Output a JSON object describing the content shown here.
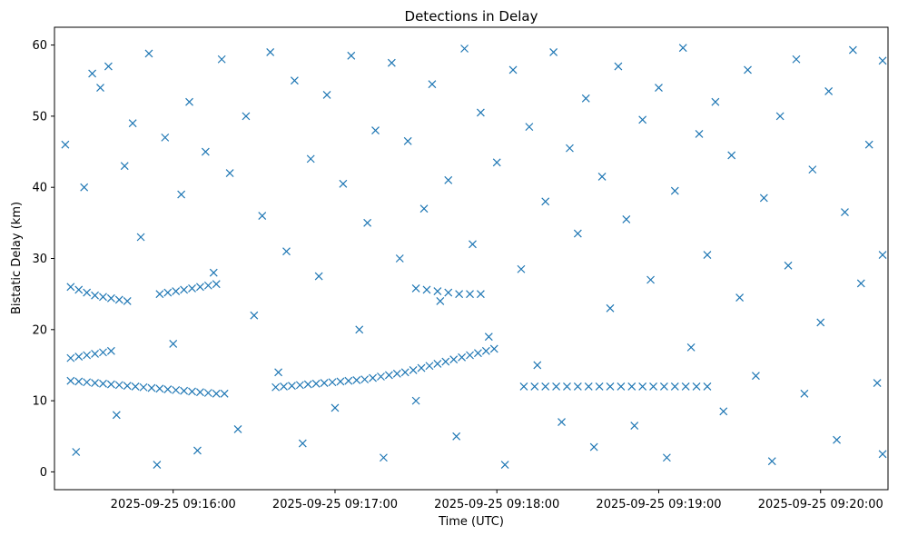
{
  "chart_data": {
    "type": "scatter",
    "title": "Detections in Delay",
    "xlabel": "Time (UTC)",
    "ylabel": "Bistatic Delay (km)",
    "marker": "x",
    "color": "#1f77b4",
    "grid": false,
    "x_axis": {
      "type": "time",
      "range": [
        "2025-09-25 09:15:16",
        "2025-09-25 09:20:25"
      ],
      "ticks": [
        "2025-09-25 09:16:00",
        "2025-09-25 09:17:00",
        "2025-09-25 09:18:00",
        "2025-09-25 09:19:00",
        "2025-09-25 09:20:00"
      ]
    },
    "y_axis": {
      "range": [
        -2.5,
        62.5
      ],
      "ticks": [
        0,
        10,
        20,
        30,
        40,
        50,
        60
      ]
    },
    "series": [
      {
        "points": [
          [
            "2025-09-25 09:15:22",
            12.8
          ],
          [
            "2025-09-25 09:15:25",
            12.7
          ],
          [
            "2025-09-25 09:15:28",
            12.6
          ],
          [
            "2025-09-25 09:15:31",
            12.5
          ],
          [
            "2025-09-25 09:15:34",
            12.4
          ],
          [
            "2025-09-25 09:15:37",
            12.3
          ],
          [
            "2025-09-25 09:15:40",
            12.2
          ],
          [
            "2025-09-25 09:15:43",
            12.1
          ],
          [
            "2025-09-25 09:15:46",
            12.0
          ],
          [
            "2025-09-25 09:15:49",
            11.9
          ],
          [
            "2025-09-25 09:15:52",
            11.8
          ],
          [
            "2025-09-25 09:15:55",
            11.7
          ],
          [
            "2025-09-25 09:15:58",
            11.6
          ],
          [
            "2025-09-25 09:16:01",
            11.5
          ],
          [
            "2025-09-25 09:16:04",
            11.4
          ],
          [
            "2025-09-25 09:16:07",
            11.3
          ],
          [
            "2025-09-25 09:16:10",
            11.2
          ],
          [
            "2025-09-25 09:16:13",
            11.1
          ],
          [
            "2025-09-25 09:16:16",
            11.0
          ],
          [
            "2025-09-25 09:16:19",
            11.0
          ],
          [
            "2025-09-25 09:16:38",
            11.9
          ],
          [
            "2025-09-25 09:16:41",
            12.0
          ],
          [
            "2025-09-25 09:16:44",
            12.1
          ],
          [
            "2025-09-25 09:16:47",
            12.2
          ],
          [
            "2025-09-25 09:16:50",
            12.3
          ],
          [
            "2025-09-25 09:16:53",
            12.4
          ],
          [
            "2025-09-25 09:16:56",
            12.5
          ],
          [
            "2025-09-25 09:16:59",
            12.6
          ],
          [
            "2025-09-25 09:17:02",
            12.7
          ],
          [
            "2025-09-25 09:17:05",
            12.8
          ],
          [
            "2025-09-25 09:17:08",
            12.9
          ],
          [
            "2025-09-25 09:17:11",
            13.0
          ],
          [
            "2025-09-25 09:17:14",
            13.2
          ],
          [
            "2025-09-25 09:17:17",
            13.4
          ],
          [
            "2025-09-25 09:17:20",
            13.6
          ],
          [
            "2025-09-25 09:17:23",
            13.8
          ],
          [
            "2025-09-25 09:17:26",
            14.0
          ],
          [
            "2025-09-25 09:17:29",
            14.3
          ],
          [
            "2025-09-25 09:17:32",
            14.6
          ],
          [
            "2025-09-25 09:17:35",
            14.9
          ],
          [
            "2025-09-25 09:17:38",
            15.2
          ],
          [
            "2025-09-25 09:17:41",
            15.5
          ],
          [
            "2025-09-25 09:17:44",
            15.8
          ],
          [
            "2025-09-25 09:17:47",
            16.1
          ],
          [
            "2025-09-25 09:17:50",
            16.4
          ],
          [
            "2025-09-25 09:17:53",
            16.7
          ],
          [
            "2025-09-25 09:17:56",
            17.0
          ],
          [
            "2025-09-25 09:17:59",
            17.3
          ],
          [
            "2025-09-25 09:15:22",
            16.0
          ],
          [
            "2025-09-25 09:15:25",
            16.2
          ],
          [
            "2025-09-25 09:15:28",
            16.4
          ],
          [
            "2025-09-25 09:15:31",
            16.6
          ],
          [
            "2025-09-25 09:15:34",
            16.8
          ],
          [
            "2025-09-25 09:15:37",
            17.0
          ],
          [
            "2025-09-25 09:15:22",
            26.0
          ],
          [
            "2025-09-25 09:15:25",
            25.6
          ],
          [
            "2025-09-25 09:15:28",
            25.2
          ],
          [
            "2025-09-25 09:15:31",
            24.8
          ],
          [
            "2025-09-25 09:15:34",
            24.6
          ],
          [
            "2025-09-25 09:15:37",
            24.4
          ],
          [
            "2025-09-25 09:15:40",
            24.2
          ],
          [
            "2025-09-25 09:15:43",
            24.0
          ],
          [
            "2025-09-25 09:15:55",
            25.0
          ],
          [
            "2025-09-25 09:15:58",
            25.2
          ],
          [
            "2025-09-25 09:16:01",
            25.4
          ],
          [
            "2025-09-25 09:16:04",
            25.6
          ],
          [
            "2025-09-25 09:16:07",
            25.8
          ],
          [
            "2025-09-25 09:16:10",
            26.0
          ],
          [
            "2025-09-25 09:16:13",
            26.2
          ],
          [
            "2025-09-25 09:16:16",
            26.4
          ],
          [
            "2025-09-25 09:18:10",
            12.0
          ],
          [
            "2025-09-25 09:18:14",
            12.0
          ],
          [
            "2025-09-25 09:18:18",
            12.0
          ],
          [
            "2025-09-25 09:18:22",
            12.0
          ],
          [
            "2025-09-25 09:18:26",
            12.0
          ],
          [
            "2025-09-25 09:18:30",
            12.0
          ],
          [
            "2025-09-25 09:18:34",
            12.0
          ],
          [
            "2025-09-25 09:18:38",
            12.0
          ],
          [
            "2025-09-25 09:18:42",
            12.0
          ],
          [
            "2025-09-25 09:18:46",
            12.0
          ],
          [
            "2025-09-25 09:18:50",
            12.0
          ],
          [
            "2025-09-25 09:18:54",
            12.0
          ],
          [
            "2025-09-25 09:18:58",
            12.0
          ],
          [
            "2025-09-25 09:19:02",
            12.0
          ],
          [
            "2025-09-25 09:19:06",
            12.0
          ],
          [
            "2025-09-25 09:19:10",
            12.0
          ],
          [
            "2025-09-25 09:19:14",
            12.0
          ],
          [
            "2025-09-25 09:19:18",
            12.0
          ],
          [
            "2025-09-25 09:17:30",
            25.8
          ],
          [
            "2025-09-25 09:17:34",
            25.6
          ],
          [
            "2025-09-25 09:17:38",
            25.4
          ],
          [
            "2025-09-25 09:17:42",
            25.2
          ],
          [
            "2025-09-25 09:17:46",
            25.0
          ],
          [
            "2025-09-25 09:17:50",
            25.0
          ],
          [
            "2025-09-25 09:17:54",
            25.0
          ],
          [
            "2025-09-25 09:15:20",
            46.0
          ],
          [
            "2025-09-25 09:15:24",
            2.8
          ],
          [
            "2025-09-25 09:15:27",
            40.0
          ],
          [
            "2025-09-25 09:15:30",
            56.0
          ],
          [
            "2025-09-25 09:15:33",
            54.0
          ],
          [
            "2025-09-25 09:15:36",
            57.0
          ],
          [
            "2025-09-25 09:15:39",
            8.0
          ],
          [
            "2025-09-25 09:15:42",
            43.0
          ],
          [
            "2025-09-25 09:15:45",
            49.0
          ],
          [
            "2025-09-25 09:15:48",
            33.0
          ],
          [
            "2025-09-25 09:15:51",
            58.8
          ],
          [
            "2025-09-25 09:15:54",
            1.0
          ],
          [
            "2025-09-25 09:15:57",
            47.0
          ],
          [
            "2025-09-25 09:16:00",
            18.0
          ],
          [
            "2025-09-25 09:16:03",
            39.0
          ],
          [
            "2025-09-25 09:16:06",
            52.0
          ],
          [
            "2025-09-25 09:16:09",
            3.0
          ],
          [
            "2025-09-25 09:16:12",
            45.0
          ],
          [
            "2025-09-25 09:16:15",
            28.0
          ],
          [
            "2025-09-25 09:16:18",
            58.0
          ],
          [
            "2025-09-25 09:16:21",
            42.0
          ],
          [
            "2025-09-25 09:16:24",
            6.0
          ],
          [
            "2025-09-25 09:16:27",
            50.0
          ],
          [
            "2025-09-25 09:16:30",
            22.0
          ],
          [
            "2025-09-25 09:16:33",
            36.0
          ],
          [
            "2025-09-25 09:16:36",
            59.0
          ],
          [
            "2025-09-25 09:16:39",
            14.0
          ],
          [
            "2025-09-25 09:16:42",
            31.0
          ],
          [
            "2025-09-25 09:16:45",
            55.0
          ],
          [
            "2025-09-25 09:16:48",
            4.0
          ],
          [
            "2025-09-25 09:16:51",
            44.0
          ],
          [
            "2025-09-25 09:16:54",
            27.5
          ],
          [
            "2025-09-25 09:16:57",
            53.0
          ],
          [
            "2025-09-25 09:17:00",
            9.0
          ],
          [
            "2025-09-25 09:17:03",
            40.5
          ],
          [
            "2025-09-25 09:17:06",
            58.5
          ],
          [
            "2025-09-25 09:17:09",
            20.0
          ],
          [
            "2025-09-25 09:17:12",
            35.0
          ],
          [
            "2025-09-25 09:17:15",
            48.0
          ],
          [
            "2025-09-25 09:17:18",
            2.0
          ],
          [
            "2025-09-25 09:17:21",
            57.5
          ],
          [
            "2025-09-25 09:17:24",
            30.0
          ],
          [
            "2025-09-25 09:17:27",
            46.5
          ],
          [
            "2025-09-25 09:17:30",
            10.0
          ],
          [
            "2025-09-25 09:17:33",
            37.0
          ],
          [
            "2025-09-25 09:17:36",
            54.5
          ],
          [
            "2025-09-25 09:17:39",
            24.0
          ],
          [
            "2025-09-25 09:17:42",
            41.0
          ],
          [
            "2025-09-25 09:17:45",
            5.0
          ],
          [
            "2025-09-25 09:17:48",
            59.5
          ],
          [
            "2025-09-25 09:17:51",
            32.0
          ],
          [
            "2025-09-25 09:17:54",
            50.5
          ],
          [
            "2025-09-25 09:17:57",
            19.0
          ],
          [
            "2025-09-25 09:18:00",
            43.5
          ],
          [
            "2025-09-25 09:18:03",
            1.0
          ],
          [
            "2025-09-25 09:18:06",
            56.5
          ],
          [
            "2025-09-25 09:18:09",
            28.5
          ],
          [
            "2025-09-25 09:18:12",
            48.5
          ],
          [
            "2025-09-25 09:18:15",
            15.0
          ],
          [
            "2025-09-25 09:18:18",
            38.0
          ],
          [
            "2025-09-25 09:18:21",
            59.0
          ],
          [
            "2025-09-25 09:18:24",
            7.0
          ],
          [
            "2025-09-25 09:18:27",
            45.5
          ],
          [
            "2025-09-25 09:18:30",
            33.5
          ],
          [
            "2025-09-25 09:18:33",
            52.5
          ],
          [
            "2025-09-25 09:18:36",
            3.5
          ],
          [
            "2025-09-25 09:18:39",
            41.5
          ],
          [
            "2025-09-25 09:18:42",
            23.0
          ],
          [
            "2025-09-25 09:18:45",
            57.0
          ],
          [
            "2025-09-25 09:18:48",
            35.5
          ],
          [
            "2025-09-25 09:18:51",
            6.5
          ],
          [
            "2025-09-25 09:18:54",
            49.5
          ],
          [
            "2025-09-25 09:18:57",
            27.0
          ],
          [
            "2025-09-25 09:19:00",
            54.0
          ],
          [
            "2025-09-25 09:19:03",
            2.0
          ],
          [
            "2025-09-25 09:19:06",
            39.5
          ],
          [
            "2025-09-25 09:19:09",
            59.6
          ],
          [
            "2025-09-25 09:19:12",
            17.5
          ],
          [
            "2025-09-25 09:19:15",
            47.5
          ],
          [
            "2025-09-25 09:19:18",
            30.5
          ],
          [
            "2025-09-25 09:19:21",
            52.0
          ],
          [
            "2025-09-25 09:19:24",
            8.5
          ],
          [
            "2025-09-25 09:19:27",
            44.5
          ],
          [
            "2025-09-25 09:19:30",
            24.5
          ],
          [
            "2025-09-25 09:19:33",
            56.5
          ],
          [
            "2025-09-25 09:19:36",
            13.5
          ],
          [
            "2025-09-25 09:19:39",
            38.5
          ],
          [
            "2025-09-25 09:19:42",
            1.5
          ],
          [
            "2025-09-25 09:19:45",
            50.0
          ],
          [
            "2025-09-25 09:19:48",
            29.0
          ],
          [
            "2025-09-25 09:19:51",
            58.0
          ],
          [
            "2025-09-25 09:19:54",
            11.0
          ],
          [
            "2025-09-25 09:19:57",
            42.5
          ],
          [
            "2025-09-25 09:20:00",
            21.0
          ],
          [
            "2025-09-25 09:20:03",
            53.5
          ],
          [
            "2025-09-25 09:20:06",
            4.5
          ],
          [
            "2025-09-25 09:20:09",
            36.5
          ],
          [
            "2025-09-25 09:20:12",
            59.3
          ],
          [
            "2025-09-25 09:20:15",
            26.5
          ],
          [
            "2025-09-25 09:20:18",
            46.0
          ],
          [
            "2025-09-25 09:20:21",
            12.5
          ],
          [
            "2025-09-25 09:20:23",
            57.8
          ],
          [
            "2025-09-25 09:20:23",
            30.5
          ],
          [
            "2025-09-25 09:20:23",
            2.5
          ]
        ]
      }
    ]
  }
}
